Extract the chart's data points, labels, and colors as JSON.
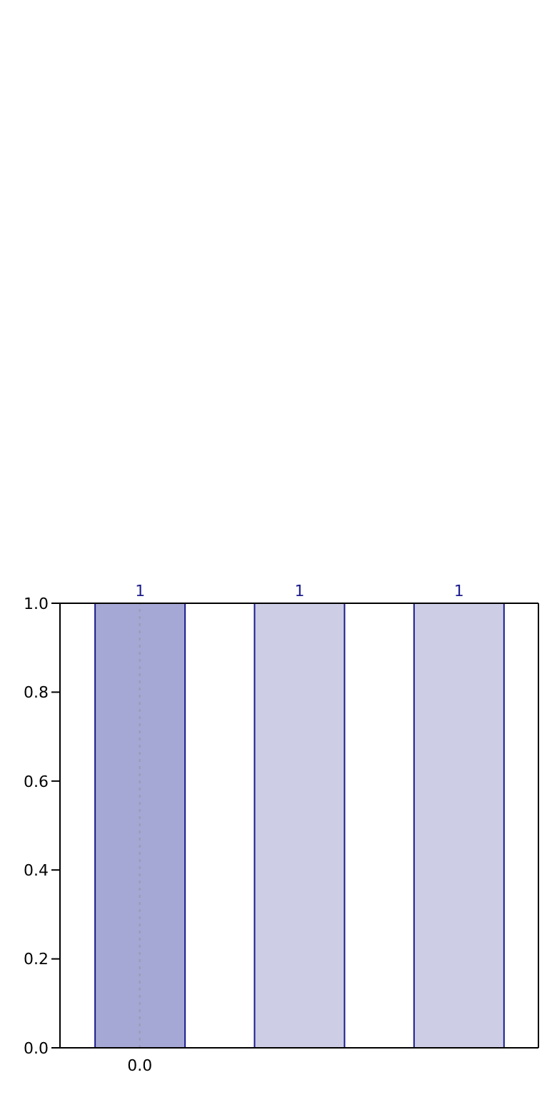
{
  "chart_data": {
    "type": "bar",
    "categories": [
      "0.0",
      null,
      null
    ],
    "values": [
      1,
      1,
      1
    ],
    "colors": [
      "#a5a8d4",
      "#cdcee6",
      "#cdcee6"
    ],
    "ylim": [
      0,
      1
    ],
    "yticks": [
      {
        "value": 0,
        "label": "0.0"
      },
      {
        "value": 0.2,
        "label": "0.2"
      },
      {
        "value": 0.4,
        "label": "0.4"
      },
      {
        "value": 0.6,
        "label": "0.6"
      },
      {
        "value": 0.8,
        "label": "0.8"
      },
      {
        "value": 1,
        "label": "1.0"
      }
    ],
    "data_labels": true,
    "ref_lines": [
      {
        "axis": "x",
        "value": "0.0",
        "color": "#9a9ab4",
        "line_style": "dotted"
      }
    ]
  }
}
